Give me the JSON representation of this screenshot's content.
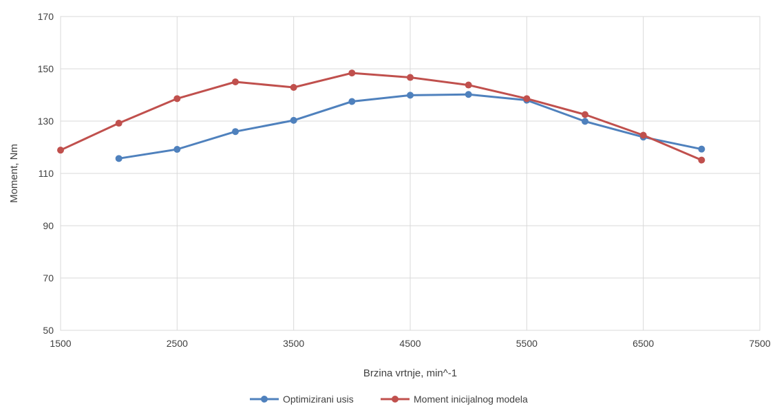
{
  "chart_data": {
    "type": "line",
    "title": "",
    "xlabel": "Brzina vrtnje, min^-1",
    "ylabel": "Moment, Nm",
    "xlim": [
      1500,
      7500
    ],
    "ylim": [
      50,
      170
    ],
    "xticks": [
      1500,
      2500,
      3500,
      4500,
      5500,
      6500,
      7500
    ],
    "yticks": [
      50,
      70,
      90,
      110,
      130,
      150,
      170
    ],
    "grid": true,
    "legend_position": "bottom",
    "series": [
      {
        "name": "Optimizirani usis",
        "color": "#4f81bd",
        "x": [
          2000,
          2500,
          3000,
          3500,
          4000,
          4500,
          5000,
          5500,
          6000,
          6500,
          7000
        ],
        "y": [
          115.7,
          119.2,
          126.0,
          130.3,
          137.5,
          139.9,
          140.2,
          138.0,
          129.9,
          123.9,
          119.3
        ]
      },
      {
        "name": "Moment inicijalnog modela",
        "color": "#c0504d",
        "x": [
          1500,
          2000,
          2500,
          3000,
          3500,
          4000,
          4500,
          5000,
          5500,
          6000,
          6500,
          7000
        ],
        "y": [
          118.9,
          129.2,
          138.6,
          145.0,
          142.9,
          148.4,
          146.7,
          143.8,
          138.6,
          132.5,
          124.6,
          115.1
        ]
      }
    ]
  }
}
